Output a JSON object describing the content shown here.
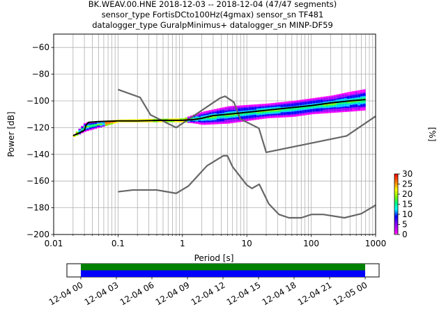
{
  "chart_data": [
    {
      "type": "heatmap",
      "title_lines": [
        "BK.WEAV.00.HNE   2018-12-03 -- 2018-12-04  (47/47 segments)",
        "sensor_type FortisDCto100Hz(4gmax) sensor_sn TF481",
        "datalogger_type GuralpMinimus+ datalogger_sn MINP-DF59"
      ],
      "xlabel": "Period [s]",
      "ylabel": "Power [dB]",
      "xscale": "log",
      "xlim": [
        0.01,
        1000
      ],
      "ylim": [
        -200,
        -50
      ],
      "xticks": [
        0.01,
        0.1,
        1,
        10,
        100,
        1000
      ],
      "xtick_labels": [
        "0.01",
        "0.1",
        "1",
        "10",
        "100",
        "1000"
      ],
      "yticks": [
        -200,
        -180,
        -160,
        -140,
        -120,
        -100,
        -80,
        -60
      ],
      "ytick_labels": [
        "−200",
        "−180",
        "−160",
        "−140",
        "−120",
        "−100",
        "−80",
        "−60"
      ],
      "grid": true,
      "colorbar": {
        "label": "[%]",
        "range": [
          0,
          30
        ],
        "ticks": [
          "0",
          "5",
          "10",
          "15",
          "20",
          "25",
          "30"
        ],
        "colormap": "pqlx"
      },
      "series": [
        {
          "role": "noise-model",
          "color": "#666666",
          "x": [
            0.1,
            0.22,
            0.32,
            0.8,
            3.8,
            4.6,
            6.3,
            7.9,
            15.4,
            20,
            354.8,
            1000
          ],
          "y": [
            -91.5,
            -97.4,
            -110.5,
            -120,
            -98,
            -96.5,
            -101,
            -113.5,
            -120.5,
            -138.5,
            -126.2,
            -111.5
          ]
        },
        {
          "role": "noise-model",
          "color": "#666666",
          "x": [
            0.1,
            0.17,
            0.4,
            0.8,
            1.24,
            2.4,
            4.3,
            5,
            6,
            10,
            12,
            15.6,
            21.9,
            31.6,
            45,
            70,
            101,
            154,
            328,
            600,
            1000
          ],
          "y": [
            -168,
            -166.7,
            -166.7,
            -169.2,
            -163.7,
            -148.6,
            -141.1,
            -141.1,
            -149.3,
            -163,
            -165.5,
            -162.4,
            -177,
            -185,
            -187.5,
            -187.5,
            -185,
            -185,
            -187.5,
            -184.4,
            -178
          ]
        },
        {
          "role": "mode",
          "color": "#000000",
          "x": [
            0.02,
            0.025,
            0.03,
            0.032,
            0.035,
            0.05,
            0.1,
            0.2,
            0.5,
            1,
            1.5,
            2,
            3,
            5,
            10,
            20,
            50,
            100,
            200,
            400,
            700
          ],
          "y": [
            -126,
            -124,
            -122,
            -118,
            -116,
            -115.5,
            -115,
            -115,
            -114.5,
            -114.5,
            -114,
            -113,
            -111,
            -110,
            -108.5,
            -107,
            -105,
            -103.5,
            -101.5,
            -100,
            -99
          ]
        }
      ],
      "density_band": {
        "x": [
          0.02,
          0.03,
          0.1,
          1,
          1.5,
          2,
          5,
          10,
          20,
          50,
          100,
          200,
          400,
          700
        ],
        "lower": [
          -127,
          -123,
          -116,
          -116,
          -117,
          -118,
          -117,
          -115,
          -113,
          -112,
          -110,
          -109,
          -108,
          -107
        ],
        "upper": [
          -125,
          -116,
          -114,
          -113,
          -110,
          -108,
          -104,
          -103,
          -102,
          -100,
          -98,
          -96,
          -93,
          -91
        ]
      }
    },
    {
      "type": "timeline",
      "xlim": [
        "12-04 00",
        "12-05 00"
      ],
      "tick_labels": [
        "12-04 00",
        "12-04 03",
        "12-04 06",
        "12-04 09",
        "12-04 12",
        "12-04 15",
        "12-04 18",
        "12-04 21",
        "12-05 00"
      ],
      "bars": [
        {
          "color": "#008000",
          "start_hour": 0,
          "end_hour": 24
        },
        {
          "color": "#0000ff",
          "start_hour": 0,
          "end_hour": 24
        }
      ]
    }
  ]
}
